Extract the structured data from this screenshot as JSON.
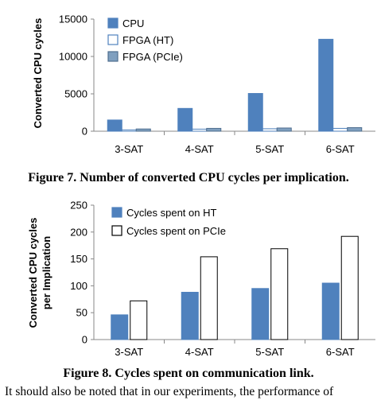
{
  "chart_data": [
    {
      "type": "bar",
      "categories": [
        "3-SAT",
        "4-SAT",
        "5-SAT",
        "6-SAT"
      ],
      "series": [
        {
          "name": "CPU",
          "values": [
            1500,
            3050,
            5050,
            12300
          ],
          "fill": "#4f81bd",
          "stroke": "#4f81bd"
        },
        {
          "name": "FPGA (HT)",
          "values": [
            180,
            280,
            330,
            380
          ],
          "fill": "#ffffff",
          "stroke": "#4f81bd"
        },
        {
          "name": "FPGA (PCIe)",
          "values": [
            300,
            380,
            430,
            480
          ],
          "fill": "#7f9fbf",
          "stroke": "#4f6f8f"
        }
      ],
      "title": "",
      "xlabel": "",
      "ylabel": "Converted CPU cycles",
      "ylim": [
        0,
        15000
      ],
      "yticks": [
        "0",
        "5000",
        "10000",
        "15000"
      ],
      "grid": false,
      "legend": "top-left",
      "caption": "Figure 7. Number of converted CPU cycles per implication."
    },
    {
      "type": "bar",
      "categories": [
        "3-SAT",
        "4-SAT",
        "5-SAT",
        "6-SAT"
      ],
      "series": [
        {
          "name": "Cycles spent on HT",
          "values": [
            46,
            88,
            95,
            105
          ],
          "fill": "#4f81bd",
          "stroke": "#4f81bd"
        },
        {
          "name": "Cycles spent on PCIe",
          "values": [
            72,
            154,
            169,
            192
          ],
          "fill": "#ffffff",
          "stroke": "#000000"
        }
      ],
      "title": "",
      "xlabel": "",
      "ylabel": "Converted CPU cycles per Implication",
      "ylabel_lines": [
        "Converted CPU cycles",
        "per Implication"
      ],
      "ylim": [
        0,
        250
      ],
      "yticks": [
        "0",
        "50",
        "100",
        "150",
        "200",
        "250"
      ],
      "grid": false,
      "legend": "top-left",
      "caption": "Figure 8. Cycles spent on communication link."
    }
  ],
  "body_text": "It should also be noted that in our experiments, the performance of"
}
